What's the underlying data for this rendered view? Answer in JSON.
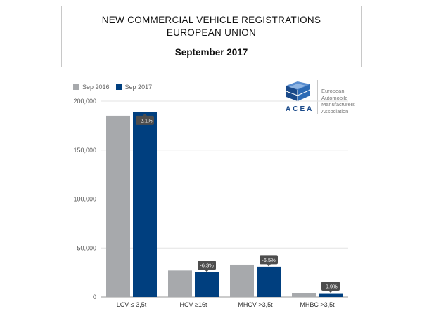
{
  "title": {
    "line1": "NEW COMMERCIAL VEHICLE REGISTRATIONS",
    "line2": "EUROPEAN UNION",
    "period": "September 2017"
  },
  "logo": {
    "acronym": "ACEA",
    "org_lines": [
      "European",
      "Automobile",
      "Manufacturers",
      "Association"
    ]
  },
  "colors": {
    "sep2016": "#a7a9ac",
    "sep2017": "#003f7f",
    "label_bg": "#4d4d4d"
  },
  "chart_data": {
    "type": "bar",
    "categories": [
      "LCV ≤ 3,5t",
      "HCV ≥16t",
      "MHCV >3,5t",
      "MHBC >3,5t"
    ],
    "series": [
      {
        "name": "Sep 2016",
        "values": [
          185000,
          27000,
          33000,
          4300
        ]
      },
      {
        "name": "Sep 2017",
        "values": [
          189000,
          25300,
          30900,
          3900
        ]
      }
    ],
    "change_labels": [
      "+2.1%",
      "-6.3%",
      "-6.5%",
      "-9.9%"
    ],
    "yticks": [
      0,
      50000,
      100000,
      150000,
      200000
    ],
    "ytick_labels": [
      "0",
      "50,000",
      "100,000",
      "150,000",
      "200,000"
    ],
    "ylim": [
      0,
      200000
    ],
    "legend_position": "top-left",
    "grid": true
  }
}
